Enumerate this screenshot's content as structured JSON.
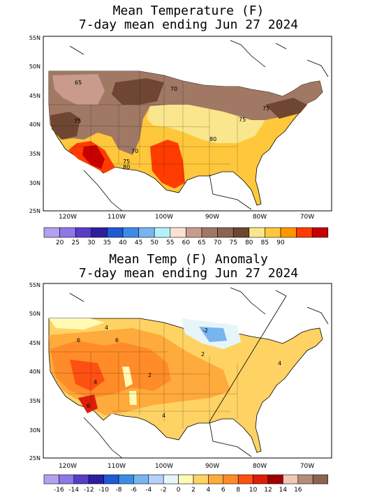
{
  "panel1": {
    "title_line1": "Mean Temperature (F)",
    "title_line2": "7-day mean ending Jun 27 2024",
    "lat_labels": [
      "55N",
      "50N",
      "45N",
      "40N",
      "35N",
      "30N",
      "25N"
    ],
    "lon_labels": [
      "120W",
      "110W",
      "100W",
      "90W",
      "80W",
      "70W"
    ],
    "contour_labels": [
      "65",
      "70",
      "75",
      "75",
      "70",
      "75",
      "80",
      "80",
      "75"
    ],
    "legend": {
      "colors": [
        "#b4a0f0",
        "#8c78e6",
        "#5a3cc8",
        "#2d1ea0",
        "#1e5ad2",
        "#3c8ce6",
        "#78b4f0",
        "#b4f0fa",
        "#fae1d2",
        "#c89b8c",
        "#a07864",
        "#8c6450",
        "#6e4632",
        "#fae68c",
        "#ffc83c",
        "#ff9600",
        "#ff3c00",
        "#c80000"
      ],
      "labels": [
        "20",
        "25",
        "30",
        "35",
        "40",
        "45",
        "50",
        "55",
        "60",
        "65",
        "70",
        "75",
        "80",
        "85",
        "90"
      ]
    }
  },
  "panel2": {
    "title_line1": "Mean Temp (F) Anomaly",
    "title_line2": "7-day mean ending Jun 27 2024",
    "lat_labels": [
      "55N",
      "50N",
      "45N",
      "40N",
      "35N",
      "30N",
      "25N"
    ],
    "lon_labels": [
      "120W",
      "110W",
      "100W",
      "90W",
      "80W",
      "70W"
    ],
    "contour_labels": [
      "4",
      "6",
      "2",
      "6",
      "4",
      "4",
      "4",
      "2",
      "6",
      "-2"
    ],
    "legend": {
      "colors": [
        "#b4a0f0",
        "#8c78e6",
        "#5a3cc8",
        "#2d1ea0",
        "#1e5ad2",
        "#3c8ce6",
        "#78b4f0",
        "#b4d2fa",
        "#e6f5fa",
        "#fffab4",
        "#ffd264",
        "#ffaa3c",
        "#ff8c28",
        "#ff5014",
        "#dc1e0a",
        "#a00000",
        "#f0c8b4",
        "#b48c78",
        "#8c6450"
      ],
      "labels": [
        "-16",
        "-14",
        "-12",
        "-10",
        "-8",
        "-6",
        "-4",
        "-2",
        "0",
        "2",
        "4",
        "6",
        "8",
        "10",
        "12",
        "14",
        "16"
      ]
    }
  }
}
